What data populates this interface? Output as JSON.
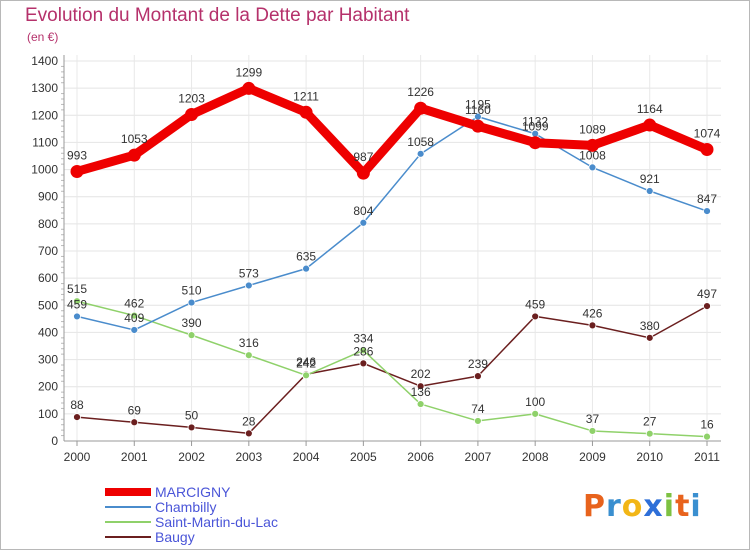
{
  "header": {
    "title": "Evolution du Montant de la Dette par Habitant",
    "unit": "(en €)"
  },
  "logo": {
    "text": "Proxiti",
    "letters": [
      "P",
      "r",
      "o",
      "x",
      "i",
      "t",
      "i"
    ],
    "colors": [
      "#e8631d",
      "#3a8fd0",
      "#f2b617",
      "#2e6fd8",
      "#7dc142",
      "#e8631d",
      "#3a8fd0"
    ]
  },
  "chart_data": {
    "type": "line",
    "title": "Evolution du Montant de la Dette par Habitant",
    "ylabel": "(en €)",
    "xlabel": "",
    "ylim": [
      0,
      1400
    ],
    "yticks": [
      "0",
      "100",
      "200",
      "300",
      "400",
      "500",
      "600",
      "700",
      "800",
      "900",
      "1000",
      "1100",
      "1200",
      "1300",
      "1400"
    ],
    "categories": [
      "2000",
      "2001",
      "2002",
      "2003",
      "2004",
      "2005",
      "2006",
      "2007",
      "2008",
      "2009",
      "2010",
      "2011"
    ],
    "grid": true,
    "legend": "bottom-left",
    "series": [
      {
        "name": "MARCIGNY",
        "color": "#ee0000",
        "values": [
          993,
          1053,
          1203,
          1299,
          1211,
          987,
          1226,
          1160,
          1099,
          1089,
          1164,
          1074
        ]
      },
      {
        "name": "Chambilly",
        "color": "#4a8ccc",
        "values": [
          459,
          409,
          510,
          573,
          635,
          804,
          1058,
          1195,
          1132,
          1008,
          921,
          847
        ]
      },
      {
        "name": "Saint-Martin-du-Lac",
        "color": "#8fd16a",
        "values": [
          515,
          462,
          390,
          316,
          242,
          334,
          136,
          74,
          100,
          37,
          27,
          16
        ]
      },
      {
        "name": "Baugy",
        "color": "#6b1f1f",
        "values": [
          88,
          69,
          50,
          28,
          246,
          286,
          202,
          239,
          459,
          426,
          380,
          497
        ]
      }
    ]
  }
}
